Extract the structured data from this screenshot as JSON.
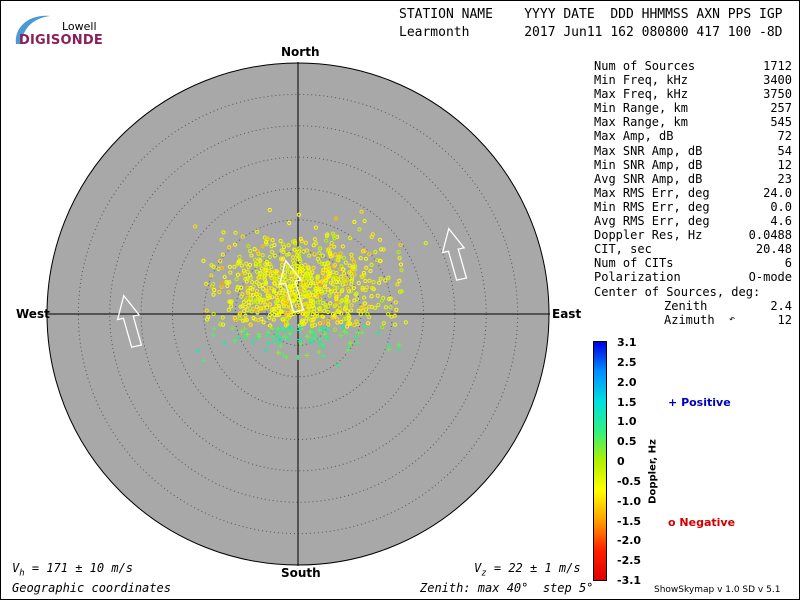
{
  "logo": {
    "subtitle": "Lowell",
    "brand": "DIGISONDE"
  },
  "header": {
    "columns": "STATION NAME    YYYY DATE  DDD HHMMSS AXN PPS IGP",
    "values": "Learmonth       2017 Jun11 162 080800 417 100 -8D"
  },
  "stats": [
    {
      "label": "Num of Sources",
      "value": "1712"
    },
    {
      "label": "Min Freq, kHz",
      "value": "3400"
    },
    {
      "label": "Max Freq, kHz",
      "value": "3750"
    },
    {
      "label": "Min Range, km",
      "value": "257"
    },
    {
      "label": "Max Range, km",
      "value": "545"
    },
    {
      "label": "Max Amp, dB",
      "value": "72"
    },
    {
      "label": "Max SNR Amp, dB",
      "value": "54"
    },
    {
      "label": "Min SNR Amp, dB",
      "value": "12"
    },
    {
      "label": "Avg SNR Amp, dB",
      "value": "23"
    },
    {
      "label": "Max RMS Err, deg",
      "value": "24.0"
    },
    {
      "label": "Min RMS Err, deg",
      "value": "0.0"
    },
    {
      "label": "Avg RMS Err, deg",
      "value": "4.6"
    },
    {
      "label": "Doppler Res, Hz",
      "value": "0.0488"
    },
    {
      "label": "CIT, sec",
      "value": "20.48"
    },
    {
      "label": "Num of CITs",
      "value": "6"
    },
    {
      "label": "Polarization",
      "value": "O-mode"
    }
  ],
  "center": {
    "title": "Center of Sources, deg:",
    "zenith_label": "Zenith",
    "zenith_value": "2.4",
    "azimuth_label": "Azimuth",
    "azimuth_value": "12"
  },
  "directions": {
    "north": "North",
    "south": "South",
    "east": "East",
    "west": "West"
  },
  "velocity": {
    "vh": "V",
    "vh_sub": "h",
    "vh_value": " = 171 ± 10 m/s",
    "vz": "V",
    "vz_sub": "z",
    "vz_value": " = 22 ± 1 m/s"
  },
  "bottom": {
    "coords": "Geographic coordinates",
    "zenith": "Zenith: max 40°  step 5°"
  },
  "colorbar": {
    "label": "Doppler, Hz",
    "ticks": [
      "3.1",
      "2.5",
      "2.0",
      "1.5",
      "1.0",
      "0.5",
      "0",
      "-0.5",
      "-1.0",
      "-1.5",
      "-2.0",
      "-2.5",
      "-3.1"
    ],
    "colors": [
      "#0000e0",
      "#0090ff",
      "#00e0e0",
      "#30f080",
      "#b0f000",
      "#ffff00",
      "#ffa000",
      "#ff2000",
      "#e00000"
    ]
  },
  "legend": {
    "positive_symbol": "+",
    "positive": "Positive",
    "negative_symbol": "o",
    "negative": "Negative",
    "positive_color": "#0000c0",
    "negative_color": "#d00000"
  },
  "footer": {
    "version": "ShowSkymap v 1.0   SD v 5.1"
  },
  "chart_data": {
    "type": "scatter",
    "projection": "polar skymap",
    "zenith_max_deg": 40,
    "zenith_step_deg": 5,
    "center_of_sources": {
      "zenith_deg": 2.4,
      "azimuth_deg": 12
    },
    "num_sources": 1712,
    "doppler_range_hz": [
      -3.1,
      3.1
    ],
    "cluster": {
      "zenith_mean_deg": 2.4,
      "azimuth_mean_deg": 12,
      "zenith_spread_deg": 7.5,
      "doppler_typical_hz": [
        -0.9,
        0.6
      ]
    },
    "velocity_arrows": [
      {
        "position": "west",
        "heading": "north"
      },
      {
        "position": "center",
        "heading": "north"
      },
      {
        "position": "north-east",
        "heading": "north"
      }
    ]
  }
}
